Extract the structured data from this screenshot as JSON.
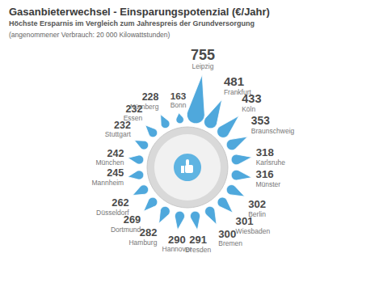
{
  "chart_data": {
    "type": "bar",
    "title": "Gasanbieterwechsel - Einsparungspotenzial (€/Jahr)",
    "subtitle": "Höchste Ersparnis im Vergleich zum Jahrespreis der Grundversorgung",
    "annotations": [
      "(angenommener Verbrauch: 20 000 Kilowattstunden)"
    ],
    "categories": [
      "Leipzig",
      "Frankfurt",
      "Köln",
      "Braunschweig",
      "Karlsruhe",
      "Münster",
      "Berlin",
      "Wiesbaden",
      "Bremen",
      "Dresden",
      "Hannover",
      "Hamburg",
      "Dortmund",
      "Düsseldorf",
      "Mannheim",
      "München",
      "Stuttgart",
      "Essen",
      "Nürnberg",
      "Bonn"
    ],
    "values": [
      755,
      481,
      433,
      353,
      318,
      316,
      302,
      301,
      300,
      291,
      290,
      282,
      269,
      262,
      245,
      242,
      232,
      232,
      228,
      163
    ],
    "color": "#4fa8dc",
    "data_labels": true
  }
}
